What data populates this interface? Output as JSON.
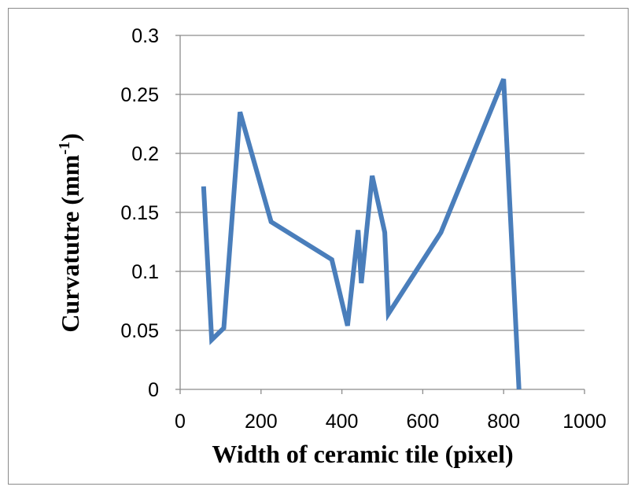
{
  "chart_data": {
    "type": "line",
    "title": "",
    "xlabel": "Width of ceramic tile (pixel)",
    "ylabel_prefix": "Curvatutre  (mm",
    "ylabel_sup": "-1",
    "ylabel_suffix": ")",
    "xlim": [
      0,
      1000
    ],
    "ylim": [
      0,
      0.3
    ],
    "x_ticks": [
      0,
      200,
      400,
      600,
      800,
      1000
    ],
    "y_ticks": [
      0,
      0.05,
      0.1,
      0.15,
      0.2,
      0.25,
      0.3
    ],
    "x_tick_labels": [
      "0",
      "200",
      "400",
      "600",
      "800",
      "1000"
    ],
    "y_tick_labels": [
      "0",
      "0.05",
      "0.1",
      "0.15",
      "0.2",
      "0.25",
      "0.3"
    ],
    "grid": "horizontal",
    "legend": "none",
    "series": [
      {
        "color": "#4a7ebb",
        "x": [
          58,
          78,
          108,
          148,
          225,
          375,
          414,
          440,
          448,
          475,
          506,
          515,
          645,
          800,
          838
        ],
        "y": [
          0.172,
          0.042,
          0.052,
          0.235,
          0.142,
          0.11,
          0.054,
          0.135,
          0.09,
          0.181,
          0.133,
          0.064,
          0.133,
          0.263,
          0.0
        ]
      }
    ]
  }
}
